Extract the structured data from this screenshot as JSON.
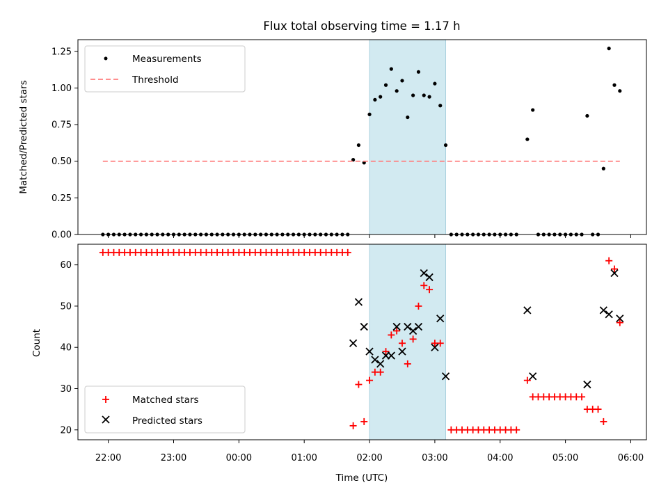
{
  "chart_data": [
    {
      "type": "scatter",
      "title": "Flux total observing time = 1.17 h",
      "xlabel": "",
      "ylabel": "Matched/Predicted stars",
      "ylim": [
        0,
        1.33
      ],
      "yticks": [
        "0.00",
        "0.25",
        "0.50",
        "0.75",
        "1.00",
        "1.25"
      ],
      "highlight_span": {
        "x_start": "2025-01-02 02:00",
        "x_end": "2025-01-02 03:10",
        "color": "#add8e6"
      },
      "legend_position": "top-left",
      "series": [
        {
          "name": "Measurements",
          "marker": "dot",
          "color": "#000000",
          "points": [
            [
              "2025-01-01 21:55",
              0.0
            ],
            [
              "2025-01-01 22:00",
              0.0
            ],
            [
              "2025-01-01 22:05",
              0.0
            ],
            [
              "2025-01-01 22:10",
              0.0
            ],
            [
              "2025-01-01 22:15",
              0.0
            ],
            [
              "2025-01-01 22:20",
              0.0
            ],
            [
              "2025-01-01 22:25",
              0.0
            ],
            [
              "2025-01-01 22:30",
              0.0
            ],
            [
              "2025-01-01 22:35",
              0.0
            ],
            [
              "2025-01-01 22:40",
              0.0
            ],
            [
              "2025-01-01 22:45",
              0.0
            ],
            [
              "2025-01-01 22:50",
              0.0
            ],
            [
              "2025-01-01 22:55",
              0.0
            ],
            [
              "2025-01-01 23:00",
              0.0
            ],
            [
              "2025-01-01 23:05",
              0.0
            ],
            [
              "2025-01-01 23:10",
              0.0
            ],
            [
              "2025-01-01 23:15",
              0.0
            ],
            [
              "2025-01-01 23:20",
              0.0
            ],
            [
              "2025-01-01 23:25",
              0.0
            ],
            [
              "2025-01-01 23:30",
              0.0
            ],
            [
              "2025-01-01 23:35",
              0.0
            ],
            [
              "2025-01-01 23:40",
              0.0
            ],
            [
              "2025-01-01 23:45",
              0.0
            ],
            [
              "2025-01-01 23:50",
              0.0
            ],
            [
              "2025-01-01 23:55",
              0.0
            ],
            [
              "2025-01-02 00:00",
              0.0
            ],
            [
              "2025-01-02 00:05",
              0.0
            ],
            [
              "2025-01-02 00:10",
              0.0
            ],
            [
              "2025-01-02 00:15",
              0.0
            ],
            [
              "2025-01-02 00:20",
              0.0
            ],
            [
              "2025-01-02 00:25",
              0.0
            ],
            [
              "2025-01-02 00:30",
              0.0
            ],
            [
              "2025-01-02 00:35",
              0.0
            ],
            [
              "2025-01-02 00:40",
              0.0
            ],
            [
              "2025-01-02 00:45",
              0.0
            ],
            [
              "2025-01-02 00:50",
              0.0
            ],
            [
              "2025-01-02 00:55",
              0.0
            ],
            [
              "2025-01-02 01:00",
              0.0
            ],
            [
              "2025-01-02 01:05",
              0.0
            ],
            [
              "2025-01-02 01:10",
              0.0
            ],
            [
              "2025-01-02 01:15",
              0.0
            ],
            [
              "2025-01-02 01:20",
              0.0
            ],
            [
              "2025-01-02 01:25",
              0.0
            ],
            [
              "2025-01-02 01:30",
              0.0
            ],
            [
              "2025-01-02 01:35",
              0.0
            ],
            [
              "2025-01-02 01:40",
              0.0
            ],
            [
              "2025-01-02 01:45",
              0.51
            ],
            [
              "2025-01-02 01:50",
              0.61
            ],
            [
              "2025-01-02 01:55",
              0.49
            ],
            [
              "2025-01-02 02:00",
              0.82
            ],
            [
              "2025-01-02 02:05",
              0.92
            ],
            [
              "2025-01-02 02:10",
              0.94
            ],
            [
              "2025-01-02 02:15",
              1.02
            ],
            [
              "2025-01-02 02:20",
              1.13
            ],
            [
              "2025-01-02 02:25",
              0.98
            ],
            [
              "2025-01-02 02:30",
              1.05
            ],
            [
              "2025-01-02 02:35",
              0.8
            ],
            [
              "2025-01-02 02:40",
              0.95
            ],
            [
              "2025-01-02 02:45",
              1.11
            ],
            [
              "2025-01-02 02:50",
              0.95
            ],
            [
              "2025-01-02 02:55",
              0.94
            ],
            [
              "2025-01-02 03:00",
              1.03
            ],
            [
              "2025-01-02 03:05",
              0.88
            ],
            [
              "2025-01-02 03:10",
              0.61
            ],
            [
              "2025-01-02 03:15",
              0.0
            ],
            [
              "2025-01-02 03:20",
              0.0
            ],
            [
              "2025-01-02 03:25",
              0.0
            ],
            [
              "2025-01-02 03:30",
              0.0
            ],
            [
              "2025-01-02 03:35",
              0.0
            ],
            [
              "2025-01-02 03:40",
              0.0
            ],
            [
              "2025-01-02 03:45",
              0.0
            ],
            [
              "2025-01-02 03:50",
              0.0
            ],
            [
              "2025-01-02 03:55",
              0.0
            ],
            [
              "2025-01-02 04:00",
              0.0
            ],
            [
              "2025-01-02 04:05",
              0.0
            ],
            [
              "2025-01-02 04:10",
              0.0
            ],
            [
              "2025-01-02 04:15",
              0.0
            ],
            [
              "2025-01-02 04:25",
              0.65
            ],
            [
              "2025-01-02 04:30",
              0.85
            ],
            [
              "2025-01-02 04:35",
              0.0
            ],
            [
              "2025-01-02 04:40",
              0.0
            ],
            [
              "2025-01-02 04:45",
              0.0
            ],
            [
              "2025-01-02 04:50",
              0.0
            ],
            [
              "2025-01-02 04:55",
              0.0
            ],
            [
              "2025-01-02 05:00",
              0.0
            ],
            [
              "2025-01-02 05:05",
              0.0
            ],
            [
              "2025-01-02 05:10",
              0.0
            ],
            [
              "2025-01-02 05:15",
              0.0
            ],
            [
              "2025-01-02 05:20",
              0.81
            ],
            [
              "2025-01-02 05:25",
              0.0
            ],
            [
              "2025-01-02 05:30",
              0.0
            ],
            [
              "2025-01-02 05:35",
              0.45
            ],
            [
              "2025-01-02 05:40",
              1.27
            ],
            [
              "2025-01-02 05:45",
              1.02
            ],
            [
              "2025-01-02 05:50",
              0.98
            ]
          ]
        },
        {
          "name": "Threshold",
          "marker": "dashed-line",
          "color": "#ff7f7f",
          "points": [
            [
              "2025-01-01 21:55",
              0.5
            ],
            [
              "2025-01-02 05:50",
              0.5
            ]
          ]
        }
      ]
    },
    {
      "type": "scatter",
      "title": "",
      "xlabel": "Time (UTC)",
      "ylabel": "Count",
      "ylim": [
        17.6,
        65
      ],
      "yticks": [
        "20",
        "30",
        "40",
        "50",
        "60"
      ],
      "xticks": [
        "22:00",
        "23:00",
        "00:00",
        "01:00",
        "02:00",
        "03:00",
        "04:00",
        "05:00",
        "06:00"
      ],
      "highlight_span": {
        "x_start": "2025-01-02 02:00",
        "x_end": "2025-01-02 03:10",
        "color": "#add8e6"
      },
      "legend_position": "bottom-left",
      "series": [
        {
          "name": "Matched stars",
          "marker": "plus",
          "color": "#ff0000",
          "points": [
            [
              "2025-01-01 21:55",
              63
            ],
            [
              "2025-01-01 22:00",
              63
            ],
            [
              "2025-01-01 22:05",
              63
            ],
            [
              "2025-01-01 22:10",
              63
            ],
            [
              "2025-01-01 22:15",
              63
            ],
            [
              "2025-01-01 22:20",
              63
            ],
            [
              "2025-01-01 22:25",
              63
            ],
            [
              "2025-01-01 22:30",
              63
            ],
            [
              "2025-01-01 22:35",
              63
            ],
            [
              "2025-01-01 22:40",
              63
            ],
            [
              "2025-01-01 22:45",
              63
            ],
            [
              "2025-01-01 22:50",
              63
            ],
            [
              "2025-01-01 22:55",
              63
            ],
            [
              "2025-01-01 23:00",
              63
            ],
            [
              "2025-01-01 23:05",
              63
            ],
            [
              "2025-01-01 23:10",
              63
            ],
            [
              "2025-01-01 23:15",
              63
            ],
            [
              "2025-01-01 23:20",
              63
            ],
            [
              "2025-01-01 23:25",
              63
            ],
            [
              "2025-01-01 23:30",
              63
            ],
            [
              "2025-01-01 23:35",
              63
            ],
            [
              "2025-01-01 23:40",
              63
            ],
            [
              "2025-01-01 23:45",
              63
            ],
            [
              "2025-01-01 23:50",
              63
            ],
            [
              "2025-01-01 23:55",
              63
            ],
            [
              "2025-01-02 00:00",
              63
            ],
            [
              "2025-01-02 00:05",
              63
            ],
            [
              "2025-01-02 00:10",
              63
            ],
            [
              "2025-01-02 00:15",
              63
            ],
            [
              "2025-01-02 00:20",
              63
            ],
            [
              "2025-01-02 00:25",
              63
            ],
            [
              "2025-01-02 00:30",
              63
            ],
            [
              "2025-01-02 00:35",
              63
            ],
            [
              "2025-01-02 00:40",
              63
            ],
            [
              "2025-01-02 00:45",
              63
            ],
            [
              "2025-01-02 00:50",
              63
            ],
            [
              "2025-01-02 00:55",
              63
            ],
            [
              "2025-01-02 01:00",
              63
            ],
            [
              "2025-01-02 01:05",
              63
            ],
            [
              "2025-01-02 01:10",
              63
            ],
            [
              "2025-01-02 01:15",
              63
            ],
            [
              "2025-01-02 01:20",
              63
            ],
            [
              "2025-01-02 01:25",
              63
            ],
            [
              "2025-01-02 01:30",
              63
            ],
            [
              "2025-01-02 01:35",
              63
            ],
            [
              "2025-01-02 01:40",
              63
            ],
            [
              "2025-01-02 01:45",
              21
            ],
            [
              "2025-01-02 01:50",
              31
            ],
            [
              "2025-01-02 01:55",
              22
            ],
            [
              "2025-01-02 02:00",
              32
            ],
            [
              "2025-01-02 02:05",
              34
            ],
            [
              "2025-01-02 02:10",
              34
            ],
            [
              "2025-01-02 02:15",
              39
            ],
            [
              "2025-01-02 02:20",
              43
            ],
            [
              "2025-01-02 02:25",
              44
            ],
            [
              "2025-01-02 02:30",
              41
            ],
            [
              "2025-01-02 02:35",
              36
            ],
            [
              "2025-01-02 02:40",
              42
            ],
            [
              "2025-01-02 02:45",
              50
            ],
            [
              "2025-01-02 02:50",
              55
            ],
            [
              "2025-01-02 02:55",
              54
            ],
            [
              "2025-01-02 03:00",
              41
            ],
            [
              "2025-01-02 03:05",
              41
            ],
            [
              "2025-01-02 03:15",
              20
            ],
            [
              "2025-01-02 03:20",
              20
            ],
            [
              "2025-01-02 03:25",
              20
            ],
            [
              "2025-01-02 03:30",
              20
            ],
            [
              "2025-01-02 03:35",
              20
            ],
            [
              "2025-01-02 03:40",
              20
            ],
            [
              "2025-01-02 03:45",
              20
            ],
            [
              "2025-01-02 03:50",
              20
            ],
            [
              "2025-01-02 03:55",
              20
            ],
            [
              "2025-01-02 04:00",
              20
            ],
            [
              "2025-01-02 04:05",
              20
            ],
            [
              "2025-01-02 04:10",
              20
            ],
            [
              "2025-01-02 04:15",
              20
            ],
            [
              "2025-01-02 04:25",
              32
            ],
            [
              "2025-01-02 04:30",
              28
            ],
            [
              "2025-01-02 04:35",
              28
            ],
            [
              "2025-01-02 04:40",
              28
            ],
            [
              "2025-01-02 04:45",
              28
            ],
            [
              "2025-01-02 04:50",
              28
            ],
            [
              "2025-01-02 04:55",
              28
            ],
            [
              "2025-01-02 05:00",
              28
            ],
            [
              "2025-01-02 05:05",
              28
            ],
            [
              "2025-01-02 05:10",
              28
            ],
            [
              "2025-01-02 05:15",
              28
            ],
            [
              "2025-01-02 05:20",
              25
            ],
            [
              "2025-01-02 05:25",
              25
            ],
            [
              "2025-01-02 05:30",
              25
            ],
            [
              "2025-01-02 05:35",
              22
            ],
            [
              "2025-01-02 05:40",
              61
            ],
            [
              "2025-01-02 05:45",
              59
            ],
            [
              "2025-01-02 05:50",
              46
            ]
          ]
        },
        {
          "name": "Predicted stars",
          "marker": "x",
          "color": "#000000",
          "points": [
            [
              "2025-01-02 01:45",
              41
            ],
            [
              "2025-01-02 01:50",
              51
            ],
            [
              "2025-01-02 01:55",
              45
            ],
            [
              "2025-01-02 02:00",
              39
            ],
            [
              "2025-01-02 02:05",
              37
            ],
            [
              "2025-01-02 02:10",
              36
            ],
            [
              "2025-01-02 02:15",
              38
            ],
            [
              "2025-01-02 02:20",
              38
            ],
            [
              "2025-01-02 02:25",
              45
            ],
            [
              "2025-01-02 02:30",
              39
            ],
            [
              "2025-01-02 02:35",
              45
            ],
            [
              "2025-01-02 02:40",
              44
            ],
            [
              "2025-01-02 02:45",
              45
            ],
            [
              "2025-01-02 02:50",
              58
            ],
            [
              "2025-01-02 02:55",
              57
            ],
            [
              "2025-01-02 03:00",
              40
            ],
            [
              "2025-01-02 03:05",
              47
            ],
            [
              "2025-01-02 03:10",
              33
            ],
            [
              "2025-01-02 04:25",
              49
            ],
            [
              "2025-01-02 04:30",
              33
            ],
            [
              "2025-01-02 05:20",
              31
            ],
            [
              "2025-01-02 05:35",
              49
            ],
            [
              "2025-01-02 05:40",
              48
            ],
            [
              "2025-01-02 05:45",
              58
            ],
            [
              "2025-01-02 05:50",
              47
            ]
          ]
        }
      ]
    }
  ]
}
